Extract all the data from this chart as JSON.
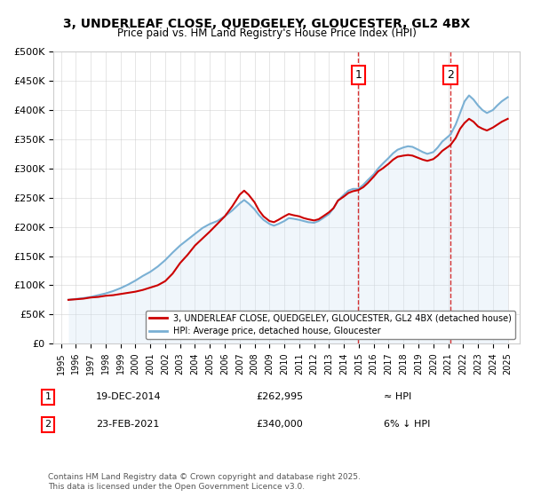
{
  "title": "3, UNDERLEAF CLOSE, QUEDGELEY, GLOUCESTER, GL2 4BX",
  "subtitle": "Price paid vs. HM Land Registry's House Price Index (HPI)",
  "ylabel_ticks": [
    "£0",
    "£50K",
    "£100K",
    "£150K",
    "£200K",
    "£250K",
    "£300K",
    "£350K",
    "£400K",
    "£450K",
    "£500K"
  ],
  "ylim": [
    0,
    500000
  ],
  "xlim_start": 1995,
  "xlim_end": 2026,
  "legend_line1": "3, UNDERLEAF CLOSE, QUEDGELEY, GLOUCESTER, GL2 4BX (detached house)",
  "legend_line2": "HPI: Average price, detached house, Gloucester",
  "annotation1": {
    "label": "1",
    "date": "19-DEC-2014",
    "price": "£262,995",
    "hpi_note": "≈ HPI"
  },
  "annotation2": {
    "label": "2",
    "date": "23-FEB-2021",
    "price": "£340,000",
    "hpi_note": "6% ↓ HPI"
  },
  "footnote": "Contains HM Land Registry data © Crown copyright and database right 2025.\nThis data is licensed under the Open Government Licence v3.0.",
  "red_color": "#cc0000",
  "blue_color": "#6699cc",
  "blue_fill": "#d0e4f5",
  "marker1_x": 2014.97,
  "marker1_y": 262995,
  "marker2_x": 2021.15,
  "marker2_y": 340000,
  "hpi_line_color": "#7ab0d4",
  "background_color": "#ffffff",
  "grid_color": "#cccccc",
  "years": [
    1995,
    1996,
    1997,
    1998,
    1999,
    2000,
    2001,
    2002,
    2003,
    2004,
    2005,
    2006,
    2007,
    2008,
    2009,
    2010,
    2011,
    2012,
    2013,
    2014,
    2015,
    2016,
    2017,
    2018,
    2019,
    2020,
    2021,
    2022,
    2023,
    2024,
    2025
  ],
  "red_x": [
    1995.5,
    1996.0,
    1996.5,
    1997.0,
    1997.5,
    1998.0,
    1998.5,
    1999.0,
    1999.5,
    2000.0,
    2000.5,
    2001.0,
    2001.5,
    2002.0,
    2002.5,
    2003.0,
    2003.5,
    2004.0,
    2004.5,
    2005.0,
    2005.5,
    2006.0,
    2006.5,
    2007.0,
    2007.3,
    2007.6,
    2008.0,
    2008.3,
    2008.6,
    2009.0,
    2009.3,
    2009.6,
    2010.0,
    2010.3,
    2010.6,
    2011.0,
    2011.3,
    2011.6,
    2012.0,
    2012.3,
    2012.6,
    2013.0,
    2013.3,
    2013.6,
    2014.0,
    2014.3,
    2014.6,
    2014.97,
    2015.3,
    2015.6,
    2016.0,
    2016.3,
    2016.6,
    2017.0,
    2017.3,
    2017.6,
    2018.0,
    2018.3,
    2018.6,
    2019.0,
    2019.3,
    2019.6,
    2020.0,
    2020.3,
    2020.6,
    2021.15,
    2021.5,
    2021.8,
    2022.1,
    2022.4,
    2022.7,
    2023.0,
    2023.3,
    2023.6,
    2024.0,
    2024.3,
    2024.6,
    2025.0
  ],
  "red_y": [
    75000,
    76000,
    77000,
    79000,
    80000,
    82000,
    83000,
    85000,
    87000,
    89000,
    92000,
    96000,
    100000,
    107000,
    120000,
    138000,
    152000,
    168000,
    180000,
    192000,
    205000,
    218000,
    235000,
    255000,
    262000,
    255000,
    242000,
    228000,
    218000,
    210000,
    208000,
    212000,
    218000,
    222000,
    220000,
    218000,
    215000,
    213000,
    211000,
    213000,
    218000,
    225000,
    232000,
    245000,
    252000,
    258000,
    261000,
    262995,
    268000,
    275000,
    286000,
    295000,
    300000,
    308000,
    315000,
    320000,
    322000,
    323000,
    322000,
    318000,
    315000,
    313000,
    316000,
    322000,
    330000,
    340000,
    352000,
    368000,
    378000,
    385000,
    380000,
    372000,
    368000,
    365000,
    370000,
    375000,
    380000,
    385000
  ],
  "hpi_x": [
    1995.5,
    1996.0,
    1996.5,
    1997.0,
    1997.5,
    1998.0,
    1998.5,
    1999.0,
    1999.5,
    2000.0,
    2000.5,
    2001.0,
    2001.5,
    2002.0,
    2002.5,
    2003.0,
    2003.5,
    2004.0,
    2004.5,
    2005.0,
    2005.5,
    2006.0,
    2006.5,
    2007.0,
    2007.3,
    2007.6,
    2008.0,
    2008.3,
    2008.6,
    2009.0,
    2009.3,
    2009.6,
    2010.0,
    2010.3,
    2010.6,
    2011.0,
    2011.3,
    2011.6,
    2012.0,
    2012.3,
    2012.6,
    2013.0,
    2013.3,
    2013.6,
    2014.0,
    2014.3,
    2014.6,
    2014.97,
    2015.3,
    2015.6,
    2016.0,
    2016.3,
    2016.6,
    2017.0,
    2017.3,
    2017.6,
    2018.0,
    2018.3,
    2018.6,
    2019.0,
    2019.3,
    2019.6,
    2020.0,
    2020.3,
    2020.6,
    2021.15,
    2021.5,
    2021.8,
    2022.1,
    2022.4,
    2022.7,
    2023.0,
    2023.3,
    2023.6,
    2024.0,
    2024.3,
    2024.6,
    2025.0
  ],
  "hpi_y": [
    75000,
    76500,
    78000,
    80000,
    83000,
    86000,
    90000,
    95000,
    101000,
    108000,
    116000,
    123000,
    132000,
    143000,
    156000,
    168000,
    178000,
    188000,
    198000,
    205000,
    210000,
    218000,
    228000,
    240000,
    246000,
    240000,
    230000,
    220000,
    212000,
    205000,
    202000,
    205000,
    210000,
    215000,
    214000,
    212000,
    210000,
    208000,
    207000,
    210000,
    215000,
    222000,
    232000,
    245000,
    255000,
    262000,
    265000,
    265000,
    272000,
    280000,
    290000,
    300000,
    308000,
    318000,
    326000,
    332000,
    336000,
    338000,
    337000,
    332000,
    328000,
    325000,
    328000,
    336000,
    346000,
    358000,
    375000,
    395000,
    415000,
    425000,
    418000,
    408000,
    400000,
    395000,
    400000,
    408000,
    415000,
    422000
  ]
}
